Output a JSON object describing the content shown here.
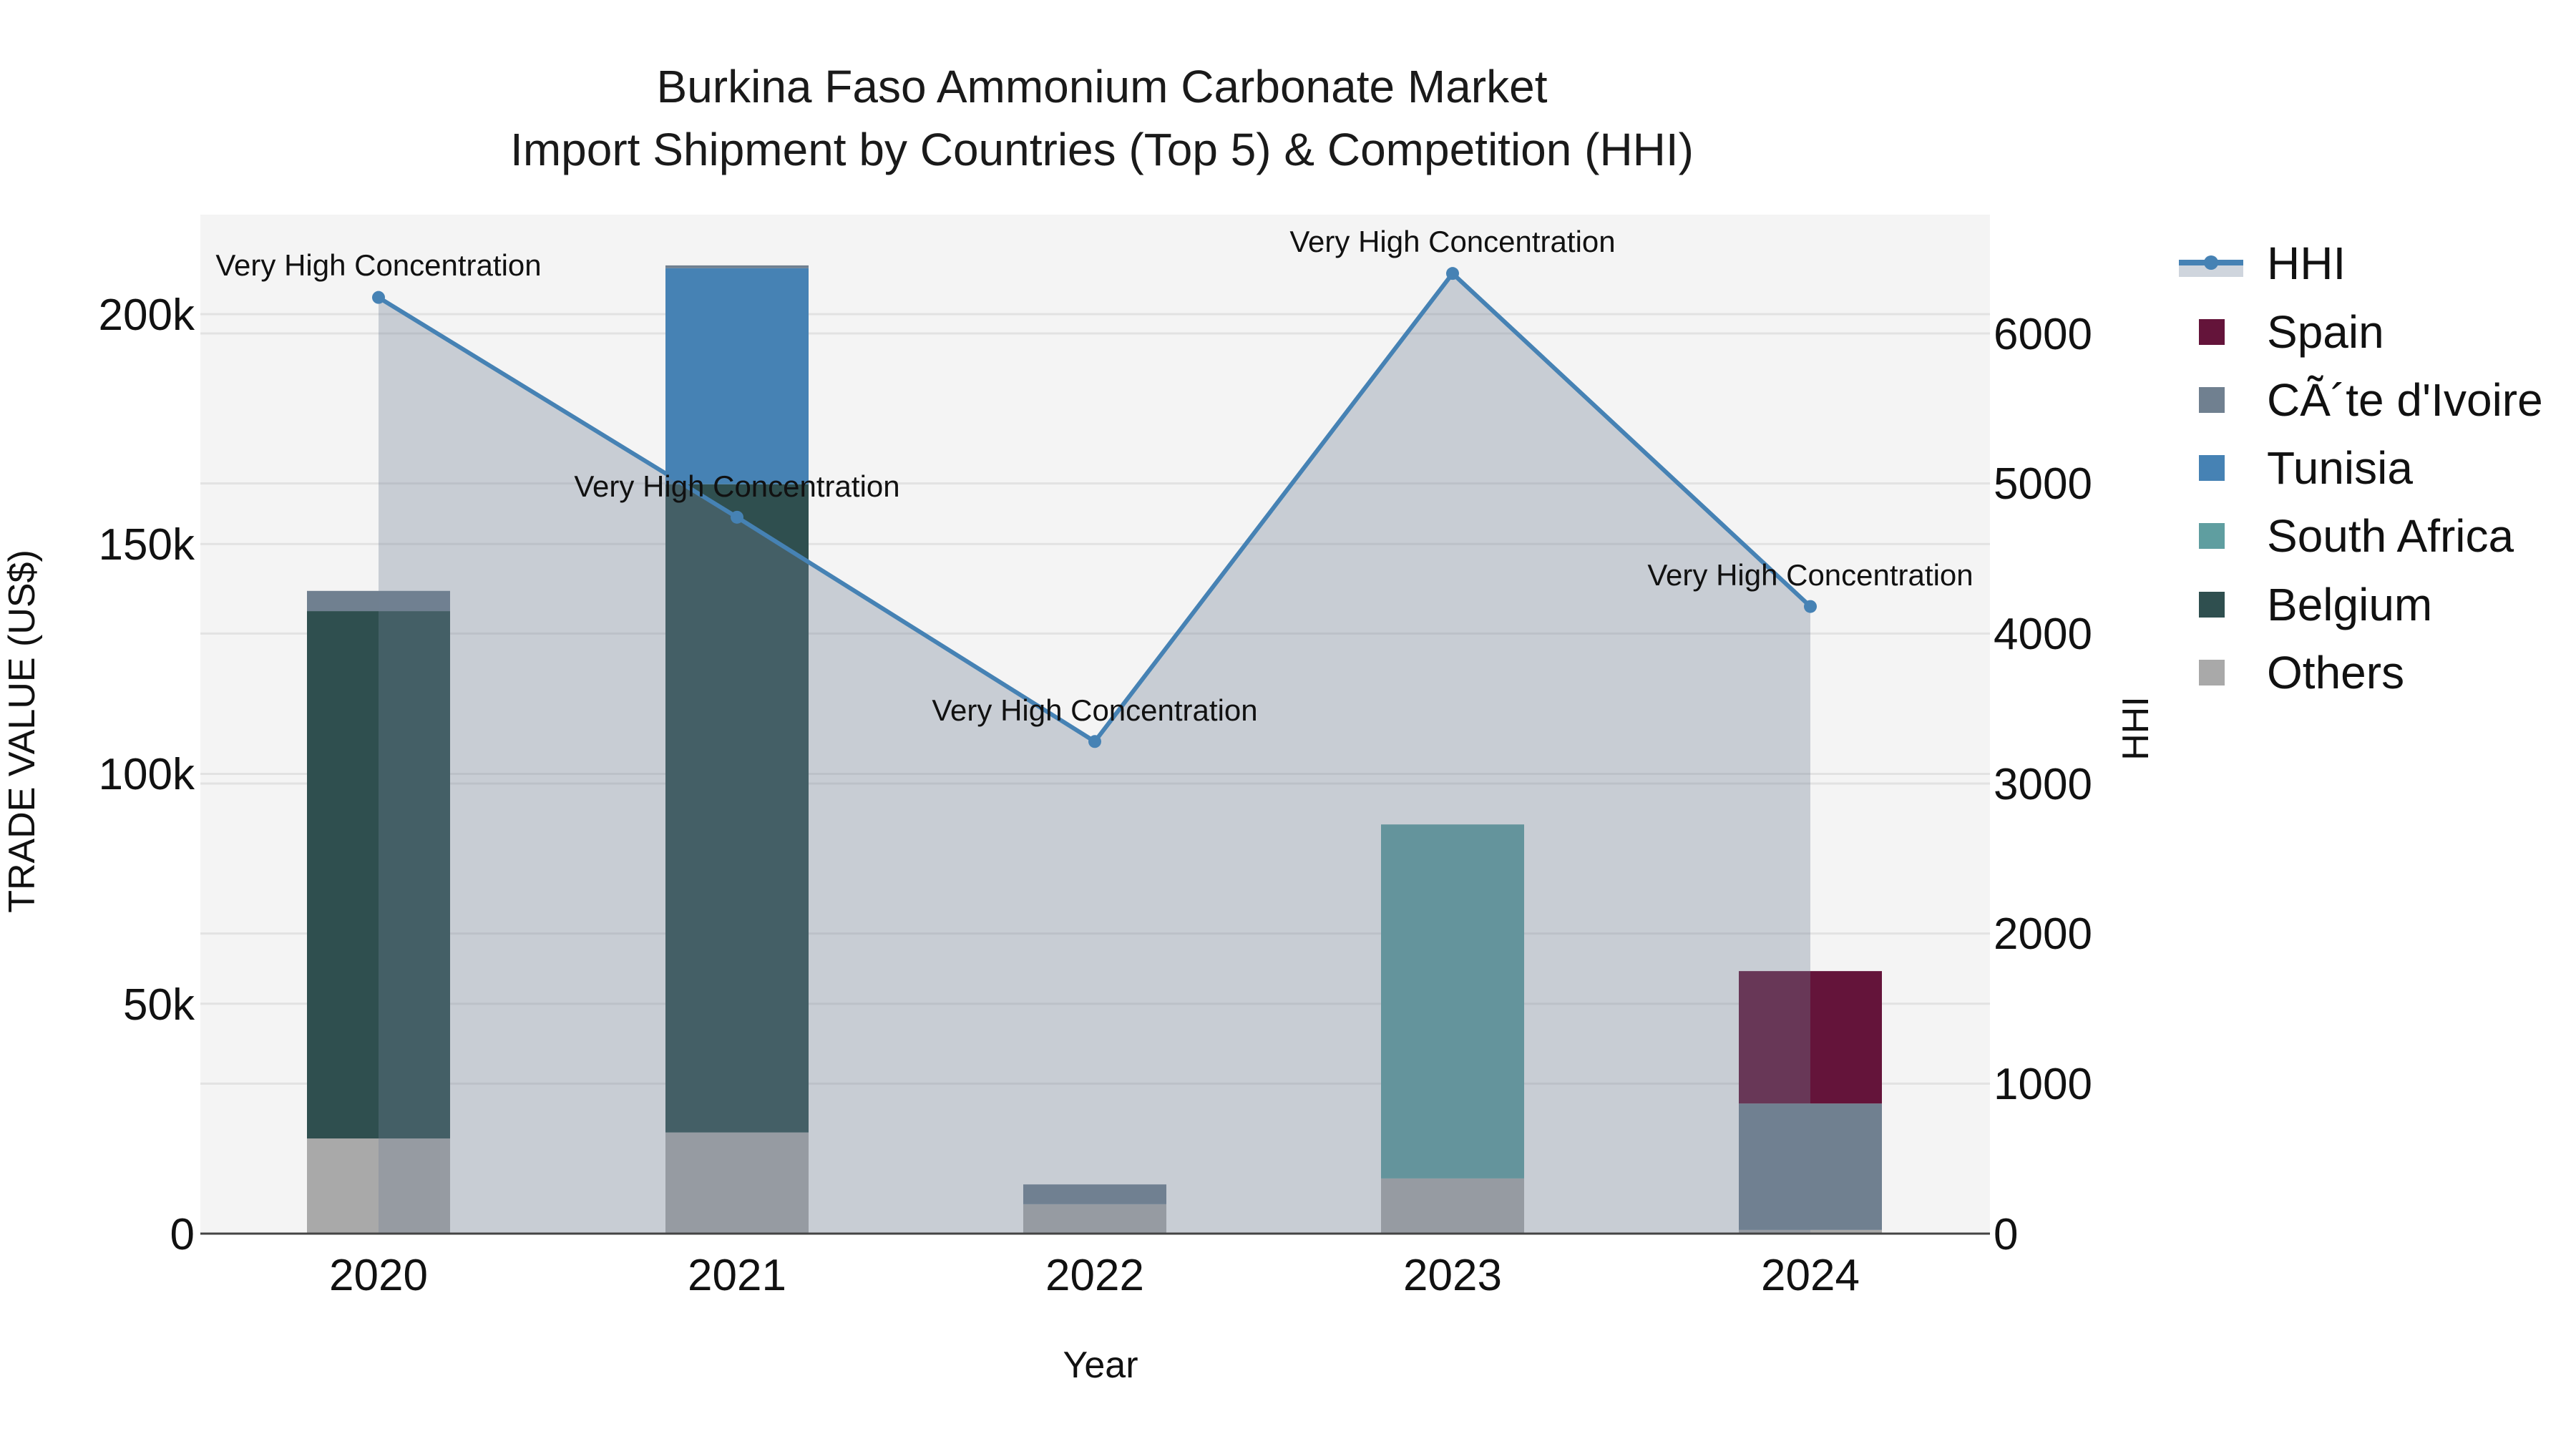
{
  "title": {
    "line1": "Burkina Faso Ammonium Carbonate Market",
    "line2": "Import Shipment by Countries (Top 5) & Competition (HHI)"
  },
  "axes": {
    "x_title": "Year",
    "y_left_title": "TRADE VALUE (US$)",
    "y_right_title": "HHI",
    "x_ticks": [
      "2020",
      "2021",
      "2022",
      "2023",
      "2024"
    ],
    "y_left_ticks": [
      "0",
      "50k",
      "100k",
      "150k",
      "200k"
    ],
    "y_right_ticks": [
      "0",
      "1000",
      "2000",
      "3000",
      "4000",
      "5000",
      "6000"
    ]
  },
  "legend": {
    "items": [
      {
        "label": "HHI",
        "color": "#4682b4",
        "kind": "line"
      },
      {
        "label": "Spain",
        "color": "#64143a",
        "kind": "box"
      },
      {
        "label": "CÃ´te d'Ivoire",
        "color": "#708090",
        "kind": "box"
      },
      {
        "label": "Tunisia",
        "color": "#4682b4",
        "kind": "box"
      },
      {
        "label": "South Africa",
        "color": "#5f9ea0",
        "kind": "box"
      },
      {
        "label": "Belgium",
        "color": "#2f4f4f",
        "kind": "box"
      },
      {
        "label": "Others",
        "color": "#a9a9a9",
        "kind": "box"
      }
    ]
  },
  "annotations": [
    "Very High Concentration",
    "Very High Concentration",
    "Very High Concentration",
    "Very High Concentration",
    "Very High Concentration"
  ],
  "colors": {
    "plot_bg": "#f4f4f4",
    "grid": "#e2e2e2",
    "hhi_line": "#4682b4",
    "hhi_fill": "rgba(112,128,150,0.33)",
    "axis_line": "#444444"
  },
  "chart_data": {
    "type": "bar",
    "stacked": true,
    "title": "Burkina Faso Ammonium Carbonate Market — Import Shipment by Countries (Top 5) & Competition (HHI)",
    "xlabel": "Year",
    "ylabel": "TRADE VALUE (US$)",
    "y2label": "HHI",
    "categories": [
      "2020",
      "2021",
      "2022",
      "2023",
      "2024"
    ],
    "ylim": [
      0,
      221000
    ],
    "y2lim": [
      0,
      6790
    ],
    "grid": true,
    "legend_position": "right",
    "series": [
      {
        "name": "Others",
        "color": "#a9a9a9",
        "values": [
          20700,
          22000,
          6400,
          12000,
          800
        ]
      },
      {
        "name": "Belgium",
        "color": "#2f4f4f",
        "values": [
          114700,
          141000,
          0,
          0,
          0
        ]
      },
      {
        "name": "South Africa",
        "color": "#5f9ea0",
        "values": [
          0,
          0,
          0,
          77000,
          0
        ]
      },
      {
        "name": "Tunisia",
        "color": "#4682b4",
        "values": [
          0,
          47000,
          0,
          0,
          0
        ]
      },
      {
        "name": "CÃ´te d'Ivoire",
        "color": "#708090",
        "values": [
          4400,
          600,
          4300,
          0,
          27500
        ]
      },
      {
        "name": "Spain",
        "color": "#64143a",
        "values": [
          0,
          0,
          0,
          0,
          28800
        ]
      }
    ],
    "line_series": {
      "name": "HHI",
      "axis": "right",
      "type": "area-line",
      "color": "#4682b4",
      "values": [
        6240,
        4775,
        3280,
        6400,
        4180
      ],
      "labels": [
        "Very High Concentration",
        "Very High Concentration",
        "Very High Concentration",
        "Very High Concentration",
        "Very High Concentration"
      ]
    }
  }
}
